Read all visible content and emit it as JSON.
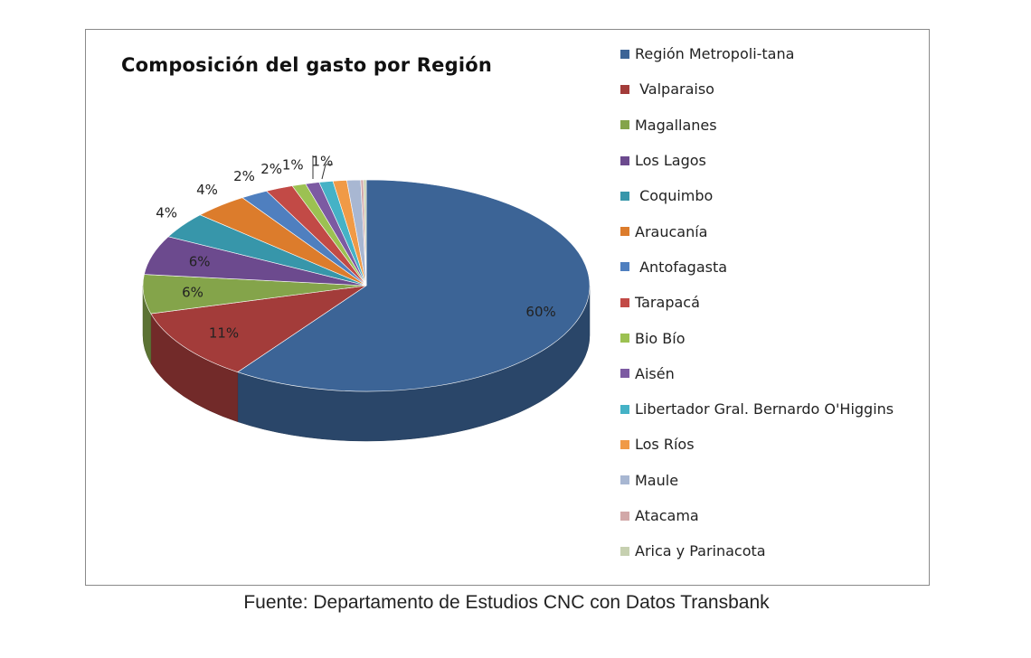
{
  "chart_data": {
    "type": "pie",
    "title": "Composición del gasto por Región",
    "legend_position": "right",
    "series": [
      {
        "name": "Región Metropoli-tana",
        "value": 60,
        "label": "60%",
        "color": "#3c6496"
      },
      {
        "name": " Valparaiso",
        "value": 11,
        "label": "11%",
        "color": "#a33c3a"
      },
      {
        "name": "Magallanes",
        "value": 6,
        "label": "6%",
        "color": "#84a44a"
      },
      {
        "name": "Los Lagos",
        "value": 6,
        "label": "6%",
        "color": "#6c4a8e"
      },
      {
        "name": " Coquimbo",
        "value": 4,
        "label": "4%",
        "color": "#3796aa"
      },
      {
        "name": "Araucanía",
        "value": 4,
        "label": "4%",
        "color": "#dc7c2c"
      },
      {
        "name": " Antofagasta",
        "value": 2,
        "label": "2%",
        "color": "#4f7fbf"
      },
      {
        "name": "Tarapacá",
        "value": 2,
        "label": "2%",
        "color": "#c24a46"
      },
      {
        "name": "Bio Bío",
        "value": 1,
        "label": "1%",
        "color": "#9cc152"
      },
      {
        "name": "Aisén",
        "value": 1,
        "label": "",
        "color": "#7c5aa2"
      },
      {
        "name": "Libertador Gral. Bernardo O'Higgins",
        "value": 1,
        "label": "1%",
        "color": "#45b2c6"
      },
      {
        "name": "Los Ríos",
        "value": 1,
        "label": "",
        "color": "#f09a46"
      },
      {
        "name": "Maule",
        "value": 1,
        "label": "",
        "color": "#a8b7d2"
      },
      {
        "name": "Atacama",
        "value": 0.2,
        "label": "",
        "color": "#d2a8a8"
      },
      {
        "name": "Arica y Parinacota",
        "value": 0.2,
        "label": "",
        "color": "#c6d0b0"
      }
    ]
  },
  "source": "Fuente: Departamento de Estudios CNC con Datos Transbank"
}
